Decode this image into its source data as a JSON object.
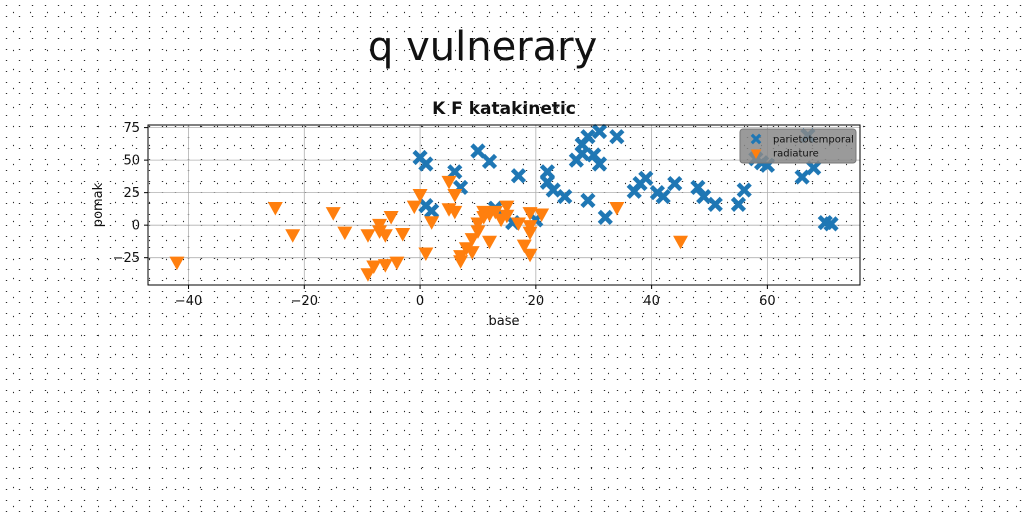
{
  "page": {
    "heading": "q vulnerary"
  },
  "chart_data": {
    "type": "scatter",
    "title": "K F katakinetic",
    "xlabel": "base",
    "ylabel": "pomak",
    "xlim": [
      -47,
      76
    ],
    "ylim": [
      -46,
      77
    ],
    "xticks": [
      -40,
      -20,
      0,
      20,
      40,
      60
    ],
    "yticks": [
      -25,
      0,
      25,
      50,
      75
    ],
    "grid": true,
    "legend_position": "top-right",
    "series": [
      {
        "name": "parietotemporal",
        "marker": "x",
        "color": "#1f77b4",
        "points": [
          [
            0,
            52
          ],
          [
            1,
            47
          ],
          [
            1,
            15
          ],
          [
            2,
            11
          ],
          [
            6,
            41
          ],
          [
            7,
            29
          ],
          [
            10,
            57
          ],
          [
            12,
            49
          ],
          [
            13,
            13
          ],
          [
            16,
            2
          ],
          [
            17,
            38
          ],
          [
            20,
            4
          ],
          [
            22,
            33
          ],
          [
            22,
            41
          ],
          [
            23,
            27
          ],
          [
            25,
            22
          ],
          [
            27,
            50
          ],
          [
            28,
            55
          ],
          [
            28,
            62
          ],
          [
            29,
            19
          ],
          [
            29,
            68
          ],
          [
            30,
            54
          ],
          [
            31,
            47
          ],
          [
            31,
            72
          ],
          [
            32,
            6
          ],
          [
            34,
            68
          ],
          [
            37,
            26
          ],
          [
            38,
            32
          ],
          [
            39,
            36
          ],
          [
            41,
            25
          ],
          [
            42,
            22
          ],
          [
            44,
            32
          ],
          [
            48,
            29
          ],
          [
            49,
            22
          ],
          [
            51,
            16
          ],
          [
            55,
            16
          ],
          [
            56,
            27
          ],
          [
            58,
            51
          ],
          [
            59,
            48
          ],
          [
            60,
            46
          ],
          [
            66,
            37
          ],
          [
            67,
            69
          ],
          [
            68,
            44
          ],
          [
            70,
            2
          ],
          [
            71,
            1
          ]
        ]
      },
      {
        "name": "radiature",
        "marker": "triangle-down",
        "color": "#ff7f0e",
        "points": [
          [
            -42,
            -28
          ],
          [
            -25,
            14
          ],
          [
            -22,
            -7
          ],
          [
            -15,
            10
          ],
          [
            -13,
            -5
          ],
          [
            -9,
            -37
          ],
          [
            -9,
            -7
          ],
          [
            -8,
            -31
          ],
          [
            -7,
            1
          ],
          [
            -7,
            -4
          ],
          [
            -6,
            -7
          ],
          [
            -6,
            -30
          ],
          [
            -5,
            7
          ],
          [
            -4,
            -28
          ],
          [
            -3,
            -6
          ],
          [
            -1,
            15
          ],
          [
            0,
            24
          ],
          [
            1,
            -21
          ],
          [
            2,
            3
          ],
          [
            5,
            13
          ],
          [
            5,
            34
          ],
          [
            6,
            24
          ],
          [
            6,
            11
          ],
          [
            7,
            -27
          ],
          [
            7,
            -23
          ],
          [
            8,
            -17
          ],
          [
            9,
            -20
          ],
          [
            9,
            -10
          ],
          [
            10,
            -4
          ],
          [
            10,
            2
          ],
          [
            11,
            11
          ],
          [
            11,
            7
          ],
          [
            12,
            9
          ],
          [
            12,
            -12
          ],
          [
            13,
            11
          ],
          [
            14,
            5
          ],
          [
            15,
            8
          ],
          [
            15,
            15
          ],
          [
            17,
            2
          ],
          [
            18,
            -15
          ],
          [
            19,
            0
          ],
          [
            19,
            10
          ],
          [
            19,
            -5
          ],
          [
            19,
            -22
          ],
          [
            21,
            9
          ],
          [
            34,
            14
          ],
          [
            45,
            -12
          ]
        ]
      }
    ]
  }
}
